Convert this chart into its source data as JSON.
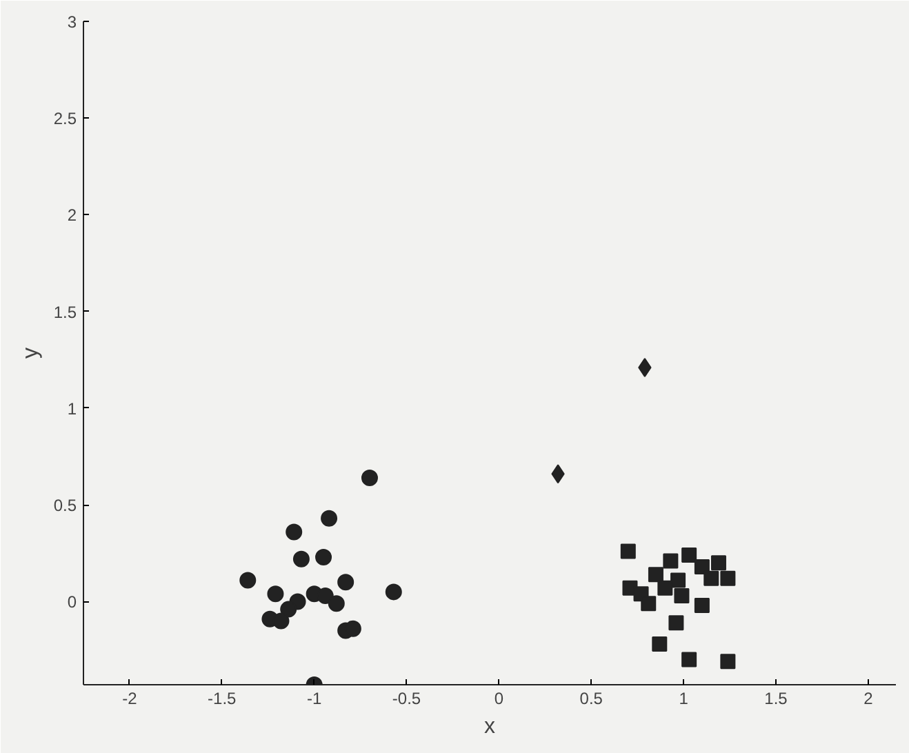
{
  "chart_data": {
    "type": "scatter",
    "xlabel": "x",
    "ylabel": "y",
    "xlim": [
      -2.25,
      2.15
    ],
    "ylim": [
      -0.43,
      3
    ],
    "xticks": [
      -2,
      -1.5,
      -1,
      -0.5,
      0,
      0.5,
      1,
      1.5,
      2
    ],
    "yticks": [
      0,
      0.5,
      1,
      1.5,
      2,
      2.5,
      3
    ],
    "grid": false,
    "series": [
      {
        "marker": "circle",
        "color": "#222222",
        "x": [
          -0.7,
          -0.92,
          -1.11,
          -1.07,
          -0.95,
          -1.36,
          -0.83,
          -0.57,
          -1.21,
          -1.0,
          -1.09,
          -0.94,
          -0.88,
          -1.14,
          -1.24,
          -1.18,
          -0.83,
          -0.79,
          -1.0
        ],
        "values": [
          0.64,
          0.43,
          0.36,
          0.22,
          0.23,
          0.11,
          0.1,
          0.05,
          0.04,
          0.04,
          0.0,
          0.03,
          -0.01,
          -0.04,
          -0.09,
          -0.1,
          -0.15,
          -0.14,
          -0.43
        ]
      },
      {
        "marker": "diamond",
        "color": "#222222",
        "x": [
          0.79,
          0.32
        ],
        "values": [
          1.21,
          0.66
        ]
      },
      {
        "marker": "square",
        "color": "#222222",
        "x": [
          0.7,
          1.03,
          0.93,
          1.19,
          1.1,
          0.85,
          1.24,
          1.15,
          0.97,
          0.71,
          0.9,
          0.77,
          0.99,
          0.81,
          1.1,
          0.96,
          0.87,
          1.03,
          1.24
        ],
        "values": [
          0.26,
          0.24,
          0.21,
          0.2,
          0.18,
          0.14,
          0.12,
          0.12,
          0.11,
          0.07,
          0.07,
          0.04,
          0.03,
          -0.01,
          -0.02,
          -0.11,
          -0.22,
          -0.3,
          -0.31
        ]
      }
    ]
  }
}
